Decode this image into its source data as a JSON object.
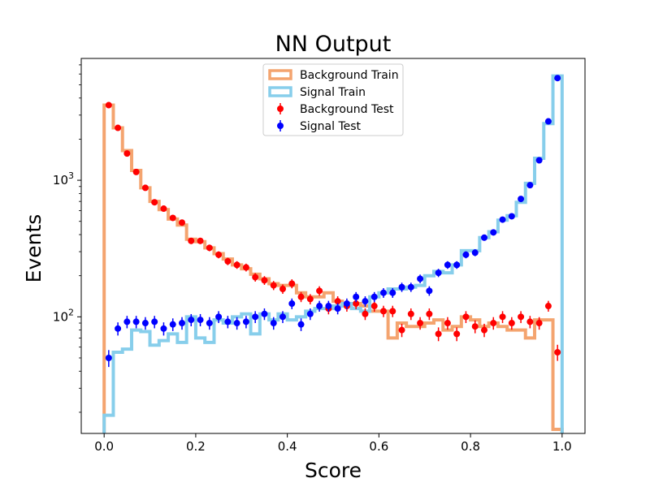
{
  "chart_data": {
    "type": "histogram",
    "title": "NN Output",
    "xlabel": "Score",
    "ylabel": "Events",
    "xlim": [
      -0.05,
      1.05
    ],
    "ylim": [
      14,
      7800
    ],
    "yscale": "log",
    "xticks": [
      "0.0",
      "0.2",
      "0.4",
      "0.6",
      "0.8",
      "1.0"
    ],
    "yticks": [
      {
        "base": "10",
        "exp": "2",
        "value": 100
      },
      {
        "base": "10",
        "exp": "3",
        "value": 1000
      }
    ],
    "legend_position": "upper center",
    "bin_edges": [
      0.0,
      0.02,
      0.04,
      0.06,
      0.08,
      0.1,
      0.12,
      0.14,
      0.16,
      0.18,
      0.2,
      0.22,
      0.24,
      0.26,
      0.28,
      0.3,
      0.32,
      0.34,
      0.36,
      0.38,
      0.4,
      0.42,
      0.44,
      0.46,
      0.48,
      0.5,
      0.52,
      0.54,
      0.56,
      0.58,
      0.6,
      0.62,
      0.64,
      0.66,
      0.68,
      0.7,
      0.72,
      0.74,
      0.76,
      0.78,
      0.8,
      0.82,
      0.84,
      0.86,
      0.88,
      0.9,
      0.92,
      0.94,
      0.96,
      0.98,
      1.0
    ],
    "series": [
      {
        "name": "Background Train",
        "kind": "step",
        "color": "#f4a46f",
        "values": [
          3550,
          2420,
          1650,
          1180,
          880,
          700,
          610,
          520,
          470,
          370,
          355,
          320,
          290,
          265,
          240,
          225,
          205,
          190,
          175,
          170,
          170,
          150,
          140,
          140,
          150,
          130,
          120,
          125,
          120,
          110,
          110,
          70,
          90,
          85,
          85,
          90,
          95,
          80,
          85,
          100,
          95,
          85,
          90,
          85,
          80,
          80,
          70,
          95,
          95,
          15
        ]
      },
      {
        "name": "Signal Train",
        "kind": "step",
        "color": "#87ceeb",
        "values": [
          19,
          55,
          58,
          80,
          78,
          62,
          67,
          75,
          65,
          100,
          70,
          65,
          95,
          90,
          100,
          105,
          75,
          105,
          95,
          105,
          95,
          100,
          110,
          115,
          115,
          120,
          125,
          115,
          110,
          140,
          150,
          160,
          160,
          165,
          170,
          200,
          215,
          210,
          240,
          305,
          305,
          380,
          420,
          510,
          550,
          690,
          950,
          1450,
          2600,
          5800
        ]
      },
      {
        "name": "Background Test",
        "kind": "errorbar",
        "color": "#ff0000",
        "values": [
          3550,
          2420,
          1570,
          1150,
          880,
          690,
          620,
          530,
          490,
          360,
          360,
          320,
          285,
          255,
          240,
          230,
          195,
          185,
          170,
          160,
          175,
          140,
          135,
          155,
          115,
          130,
          120,
          125,
          105,
          120,
          110,
          110,
          80,
          105,
          90,
          105,
          75,
          90,
          75,
          100,
          85,
          80,
          90,
          100,
          90,
          100,
          92,
          90,
          120,
          55
        ]
      },
      {
        "name": "Signal Test",
        "kind": "errorbar",
        "color": "#0000ff",
        "values": [
          50,
          82,
          92,
          92,
          90,
          92,
          82,
          88,
          90,
          95,
          95,
          90,
          100,
          92,
          90,
          92,
          100,
          105,
          90,
          100,
          125,
          88,
          105,
          120,
          120,
          115,
          125,
          140,
          130,
          140,
          150,
          150,
          165,
          165,
          190,
          155,
          210,
          240,
          240,
          285,
          295,
          380,
          415,
          515,
          545,
          730,
          920,
          1400,
          2700,
          5600
        ]
      }
    ]
  }
}
